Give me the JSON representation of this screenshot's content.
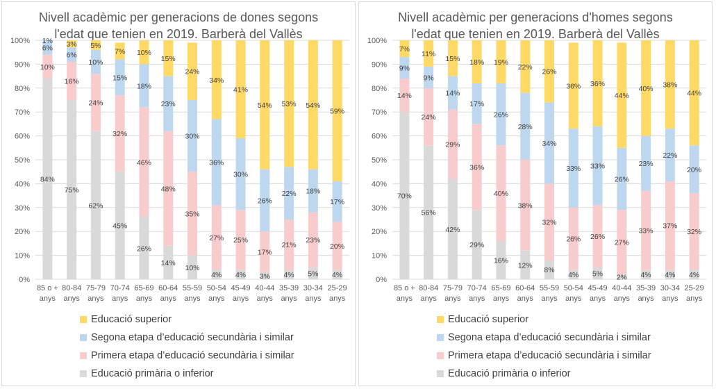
{
  "colors": {
    "superior": "#ffd966",
    "segona": "#bdd7ee",
    "primera": "#f8cbcd",
    "primaria": "#d9d9d9",
    "gridline": "#d9d9d9",
    "axis_text": "#595959"
  },
  "chart_data": [
    {
      "type": "bar",
      "stacked": true,
      "title": "Nivell acadèmic per generacions de dones segons l'edat que tenien en 2019. Barberà del Vallès",
      "title_lines": [
        "Nivell acadèmic per generacions de dones segons",
        "l'edat que tenien en 2019. Barberà del Vallès"
      ],
      "categories": [
        "85 o + anys",
        "80-84 anys",
        "75-79 anys",
        "70-74 anys",
        "65-69 anys",
        "60-64 anys",
        "55-59 anys",
        "50-54 anys",
        "45-49 anys",
        "40-44 anys",
        "35-39 anys",
        "30-34 anys",
        "25-29 anys"
      ],
      "category_lines": [
        [
          "85 o +",
          "anys"
        ],
        [
          "80-84",
          "anys"
        ],
        [
          "75-79",
          "anys"
        ],
        [
          "70-74",
          "anys"
        ],
        [
          "65-69",
          "anys"
        ],
        [
          "60-64",
          "anys"
        ],
        [
          "55-59",
          "anys"
        ],
        [
          "50-54",
          "anys"
        ],
        [
          "45-49",
          "anys"
        ],
        [
          "40-44",
          "anys"
        ],
        [
          "35-39",
          "anys"
        ],
        [
          "30-34",
          "anys"
        ],
        [
          "25-29",
          "anys"
        ]
      ],
      "ylim": [
        0,
        100
      ],
      "yticks": [
        "0%",
        "10%",
        "20%",
        "30%",
        "40%",
        "50%",
        "60%",
        "70%",
        "80%",
        "90%",
        "100%"
      ],
      "grid": true,
      "legend_position": "bottom",
      "series": [
        {
          "name": "Educació primària o inferior",
          "values": [
            84,
            75,
            62,
            45,
            26,
            14,
            10,
            4,
            4,
            3,
            4,
            5,
            4
          ]
        },
        {
          "name": "Primera etapa d’educació secundària i similar",
          "values": [
            10,
            16,
            24,
            32,
            46,
            48,
            35,
            27,
            25,
            17,
            21,
            23,
            20
          ]
        },
        {
          "name": "Segona etapa d’educació secundària i similar",
          "values": [
            6,
            6,
            10,
            15,
            18,
            23,
            30,
            36,
            30,
            26,
            22,
            18,
            17
          ]
        },
        {
          "name": "Educació superior",
          "values": [
            1,
            3,
            5,
            7,
            10,
            15,
            24,
            34,
            41,
            54,
            53,
            54,
            59
          ]
        }
      ]
    },
    {
      "type": "bar",
      "stacked": true,
      "title": "Nivell acadèmic per generacions d'homes segons l'edat que tenien en 2019. Barberà del Vallès",
      "title_lines": [
        "Nivell acadèmic per generacions d'homes segons",
        "l'edat que tenien en 2019. Barberà del Vallès"
      ],
      "categories": [
        "85 o + anys",
        "80-84 anys",
        "75-79 anys",
        "70-74 anys",
        "65-69 anys",
        "60-64 anys",
        "55-59 anys",
        "50-54 anys",
        "45-49 anys",
        "40-44 anys",
        "35-39 anys",
        "30-34 anys",
        "25-29 anys"
      ],
      "category_lines": [
        [
          "85 o +",
          "anys"
        ],
        [
          "80-84",
          "anys"
        ],
        [
          "75-79",
          "anys"
        ],
        [
          "70-74",
          "anys"
        ],
        [
          "65-69",
          "anys"
        ],
        [
          "60-64",
          "anys"
        ],
        [
          "55-59",
          "anys"
        ],
        [
          "50-54",
          "anys"
        ],
        [
          "45-49",
          "anys"
        ],
        [
          "40-44",
          "anys"
        ],
        [
          "35-39",
          "anys"
        ],
        [
          "30-34",
          "anys"
        ],
        [
          "25-29",
          "anys"
        ]
      ],
      "ylim": [
        0,
        100
      ],
      "yticks": [
        "0%",
        "10%",
        "20%",
        "30%",
        "40%",
        "50%",
        "60%",
        "70%",
        "80%",
        "90%",
        "100%"
      ],
      "grid": true,
      "legend_position": "bottom",
      "series": [
        {
          "name": "Educació primària o inferior",
          "values": [
            70,
            56,
            42,
            29,
            16,
            12,
            8,
            4,
            5,
            2,
            4,
            4,
            4
          ]
        },
        {
          "name": "Primera etapa d’educació secundària i similar",
          "values": [
            14,
            24,
            29,
            36,
            40,
            38,
            32,
            26,
            26,
            27,
            33,
            37,
            32
          ]
        },
        {
          "name": "Segona etapa d’educació secundària i similar",
          "values": [
            9,
            9,
            14,
            17,
            26,
            28,
            34,
            33,
            33,
            26,
            23,
            22,
            20
          ]
        },
        {
          "name": "Educació superior",
          "values": [
            7,
            11,
            15,
            18,
            19,
            22,
            26,
            36,
            36,
            44,
            40,
            38,
            44
          ]
        }
      ]
    }
  ],
  "legend_order": [
    3,
    2,
    1,
    0
  ]
}
